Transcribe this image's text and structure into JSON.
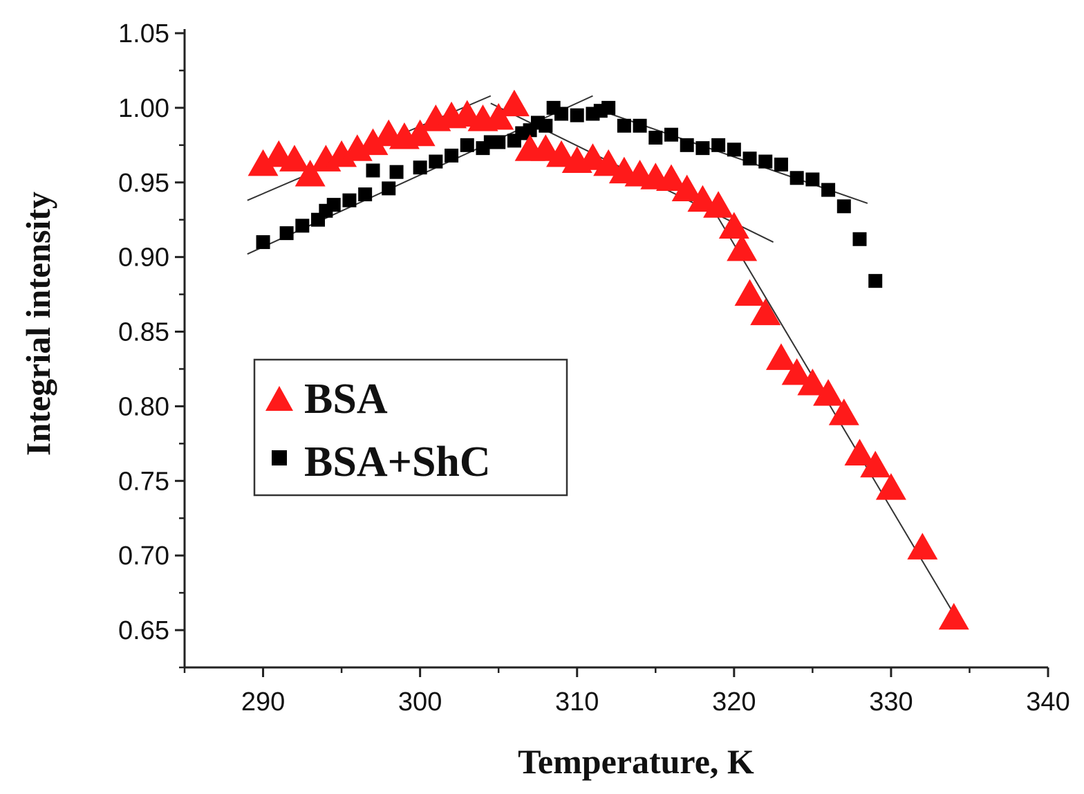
{
  "chart_data": {
    "type": "scatter",
    "xlabel": "Temperature, K",
    "ylabel": "Integrial intensity",
    "xlim": [
      285,
      340
    ],
    "ylim": [
      0.625,
      1.05
    ],
    "xticks": [
      "290",
      "300",
      "310",
      "320",
      "330",
      "340"
    ],
    "yticks": [
      "0.65",
      "0.70",
      "0.75",
      "0.80",
      "0.85",
      "0.90",
      "0.95",
      "1.00",
      "1.05"
    ],
    "legend_position": "left-middle",
    "grid": false,
    "series": [
      {
        "name": "BSA",
        "marker": "triangle",
        "color": "#ff1a1a",
        "x": [
          290,
          291,
          292,
          293,
          294,
          295,
          296,
          297,
          298,
          299,
          300,
          301,
          302,
          303,
          304,
          305,
          306,
          307,
          308,
          309,
          310,
          311,
          312,
          313,
          314,
          315,
          316,
          317,
          318,
          319,
          320,
          320.5,
          321,
          322,
          323,
          324,
          325,
          326,
          327,
          328,
          329,
          330,
          332,
          334
        ],
        "y": [
          0.962,
          0.968,
          0.965,
          0.955,
          0.965,
          0.968,
          0.972,
          0.976,
          0.982,
          0.98,
          0.982,
          0.992,
          0.994,
          0.995,
          0.992,
          0.993,
          1.002,
          0.972,
          0.972,
          0.968,
          0.964,
          0.966,
          0.962,
          0.957,
          0.955,
          0.953,
          0.952,
          0.945,
          0.938,
          0.934,
          0.92,
          0.905,
          0.875,
          0.862,
          0.832,
          0.822,
          0.815,
          0.808,
          0.795,
          0.768,
          0.76,
          0.745,
          0.705,
          0.658
        ]
      },
      {
        "name": "BSA+ShC",
        "marker": "square",
        "color": "#000000",
        "x": [
          290,
          291.5,
          292.5,
          293.5,
          294,
          294.5,
          295.5,
          296.5,
          297,
          298,
          298.5,
          300,
          301,
          302,
          303,
          304,
          304.5,
          305,
          306,
          306.5,
          307,
          307.5,
          308,
          308.5,
          309,
          310,
          311,
          311.5,
          312,
          313,
          314,
          315,
          316,
          317,
          318,
          319,
          320,
          321,
          322,
          323,
          324,
          325,
          326,
          327,
          328,
          329
        ],
        "y": [
          0.91,
          0.916,
          0.921,
          0.925,
          0.931,
          0.935,
          0.938,
          0.942,
          0.958,
          0.946,
          0.957,
          0.96,
          0.964,
          0.968,
          0.975,
          0.973,
          0.977,
          0.977,
          0.978,
          0.983,
          0.985,
          0.99,
          0.988,
          1.0,
          0.996,
          0.995,
          0.996,
          0.998,
          1.0,
          0.988,
          0.988,
          0.98,
          0.982,
          0.975,
          0.973,
          0.975,
          0.972,
          0.966,
          0.964,
          0.962,
          0.953,
          0.952,
          0.945,
          0.934,
          0.912,
          0.884
        ]
      }
    ],
    "fit_lines": [
      {
        "x": [
          289,
          304.5
        ],
        "y": [
          0.938,
          1.008
        ]
      },
      {
        "x": [
          304.5,
          322.5
        ],
        "y": [
          1.003,
          0.91
        ]
      },
      {
        "x": [
          289,
          311
        ],
        "y": [
          0.902,
          1.008
        ]
      },
      {
        "x": [
          311,
          328.5
        ],
        "y": [
          1.0,
          0.936
        ]
      },
      {
        "x": [
          318.5,
          334.5
        ],
        "y": [
          0.935,
          0.652
        ]
      }
    ]
  }
}
